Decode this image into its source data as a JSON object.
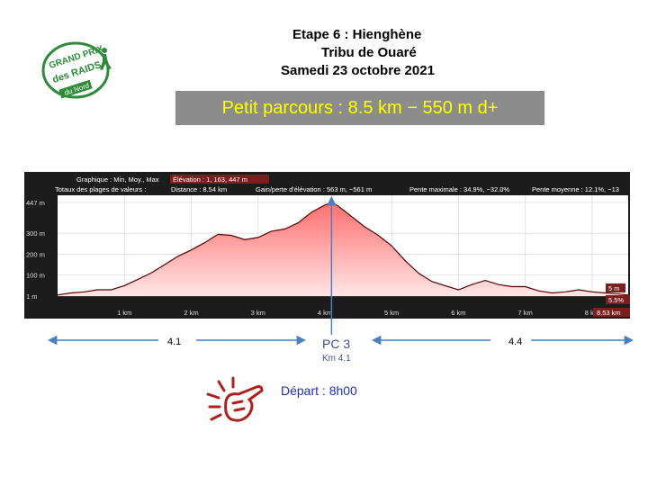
{
  "header": {
    "line1": "Etape 6 : Hienghène",
    "line2": "Tribu de Ouaré",
    "line3": "Samedi 23 octobre 2021"
  },
  "logo": {
    "line1": "GRAND PRIX",
    "line2": "des RAIDS",
    "line3": "du Nord"
  },
  "banner": {
    "text": "Petit parcours : 8.5 km − 550 m d+"
  },
  "info": {
    "graph_mode": "Graphique : Min, Moy., Max",
    "elevation": "Élévation : 1, 163, 447 m",
    "totals": "Totaux des plages de valeurs :",
    "distance": "Distance : 8.54 km",
    "gain": "Gain/perte d'élévation : 563 m, −561 m",
    "max_slope": "Pente maximale : 34.9%, −32.0%",
    "mean_slope": "Pente moyenne : 12.1%, −13"
  },
  "right_badges": {
    "elev": "5 m",
    "slope": "5.5%",
    "dist": "8.53 km"
  },
  "chart_data": {
    "type": "area",
    "title": "",
    "xlabel": "",
    "ylabel": "",
    "x_ticks": [
      "1 km",
      "2 km",
      "3 km",
      "4 km",
      "5 km",
      "6 km",
      "7 km",
      "8 km"
    ],
    "y_ticks": [
      "447 m",
      "300 m",
      "200 m",
      "100 m",
      "1 m"
    ],
    "xlim": [
      0,
      8.54
    ],
    "ylim": [
      0,
      447
    ],
    "grid": true,
    "series": [
      {
        "x": [
          0,
          0.2,
          0.4,
          0.6,
          0.8,
          1.0,
          1.2,
          1.4,
          1.6,
          1.8,
          2.0,
          2.2,
          2.4,
          2.6,
          2.8,
          3.0,
          3.2,
          3.4,
          3.6,
          3.8,
          4.0,
          4.1,
          4.2,
          4.4,
          4.6,
          4.8,
          5.0,
          5.2,
          5.4,
          5.6,
          5.8,
          6.0,
          6.2,
          6.4,
          6.6,
          6.8,
          7.0,
          7.2,
          7.4,
          7.6,
          7.8,
          8.0,
          8.2,
          8.4,
          8.54
        ],
        "y": [
          5,
          15,
          20,
          30,
          30,
          50,
          80,
          110,
          150,
          190,
          220,
          255,
          295,
          290,
          270,
          280,
          310,
          320,
          350,
          400,
          435,
          447,
          430,
          380,
          330,
          290,
          240,
          170,
          110,
          70,
          50,
          30,
          55,
          75,
          55,
          45,
          45,
          25,
          15,
          20,
          30,
          20,
          15,
          10,
          5
        ]
      }
    ],
    "marker": {
      "x": 4.1,
      "label": "PC 3",
      "sublabel": "Km 4.1"
    }
  },
  "segments": {
    "left": "4.1",
    "right": "4.4"
  },
  "start": {
    "text": "Départ : 8h00"
  },
  "colors": {
    "fill_top": "#ff6e6e",
    "fill_bottom": "#ffe6e6",
    "line": "#5a0000",
    "marker": "#2e5db0",
    "banner_bg": "#8c8c8c",
    "banner_text": "#ffff00"
  }
}
